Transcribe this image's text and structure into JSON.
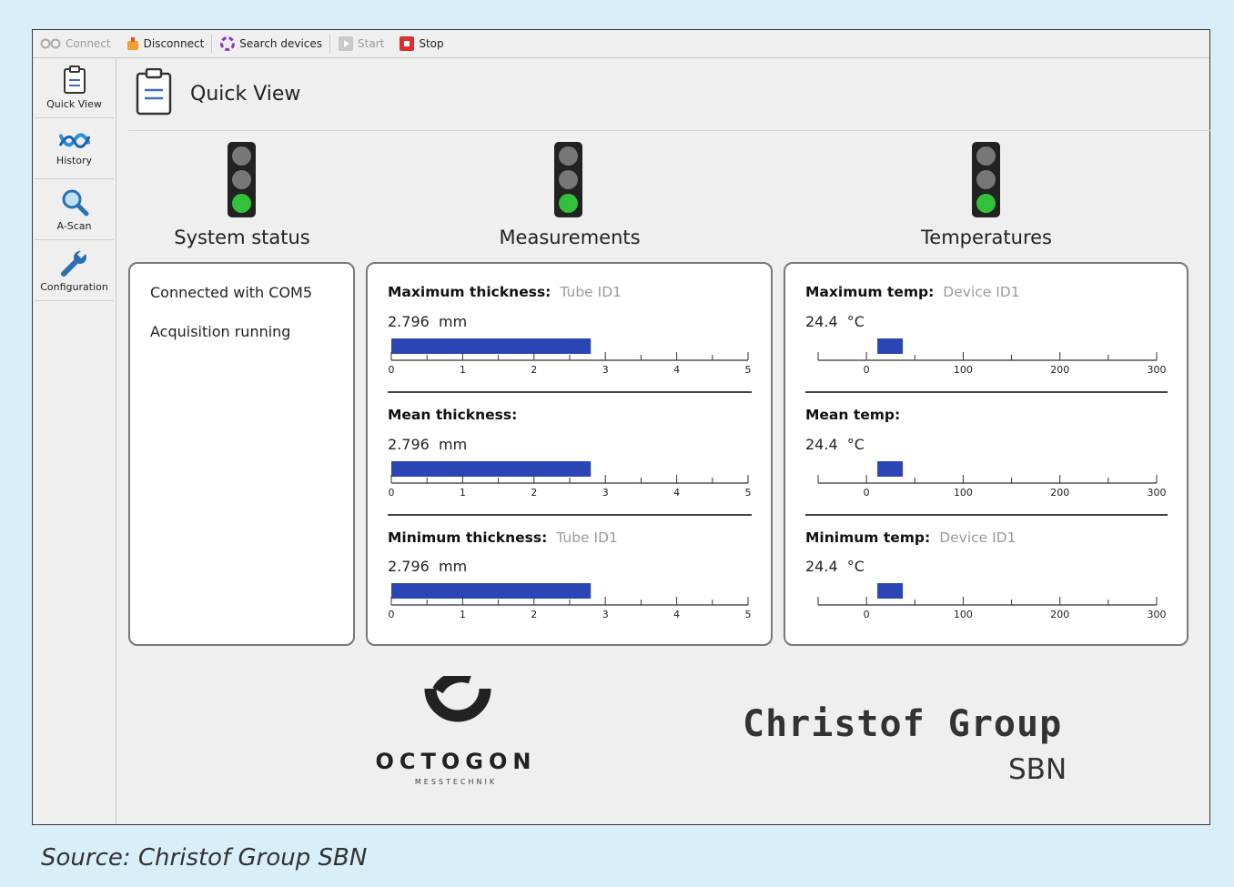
{
  "toolbar": {
    "connect": "Connect",
    "disconnect": "Disconnect",
    "search": "Search devices",
    "start": "Start",
    "stop": "Stop"
  },
  "sidebar": {
    "items": [
      {
        "label": "Quick View",
        "icon": "clipboard-icon"
      },
      {
        "label": "History",
        "icon": "wave-icon"
      },
      {
        "label": "A-Scan",
        "icon": "magnifier-icon"
      },
      {
        "label": "Configuration",
        "icon": "wrench-icon"
      }
    ]
  },
  "page": {
    "title": "Quick View"
  },
  "sections": {
    "system": "System status",
    "measurements": "Measurements",
    "temperatures": "Temperatures"
  },
  "status_lights": {
    "system": "green",
    "measurements": "green",
    "temperatures": "green"
  },
  "system_status": {
    "line1": "Connected with COM5",
    "line2": "Acquisition running"
  },
  "measurements": [
    {
      "label": "Maximum thickness:",
      "device": "Tube ID1",
      "value": "2.796",
      "unit": "mm",
      "level": 2.796
    },
    {
      "label": "Mean thickness:",
      "device": "",
      "value": "2.796",
      "unit": "mm",
      "level": 2.796
    },
    {
      "label": "Minimum thickness:",
      "device": "Tube ID1",
      "value": "2.796",
      "unit": "mm",
      "level": 2.796
    }
  ],
  "thickness_scale": {
    "min": 0,
    "max": 5,
    "ticks": [
      "0",
      "1",
      "2",
      "3",
      "4",
      "5"
    ]
  },
  "temperatures": [
    {
      "label": "Maximum temp:",
      "device": "Device ID1",
      "value": "24.4",
      "unit": "°C",
      "level": 24.4
    },
    {
      "label": "Mean temp:",
      "device": "",
      "value": "24.4",
      "unit": "°C",
      "level": 24.4
    },
    {
      "label": "Minimum temp:",
      "device": "Device ID1",
      "value": "24.4",
      "unit": "°C",
      "level": 24.4
    }
  ],
  "temp_scale": {
    "min": -50,
    "max": 300,
    "ticks": [
      "0",
      "100",
      "200",
      "300"
    ]
  },
  "logos": {
    "octogon": "OCTOGON",
    "octogon_sub": "MESSTECHNIK",
    "christof": "Christof Group",
    "sbn": "SBN"
  },
  "caption": "Source: Christof Group SBN",
  "colors": {
    "bar": "#2b45b5",
    "green_light": "#33c13c",
    "background": "#d8eef9"
  }
}
